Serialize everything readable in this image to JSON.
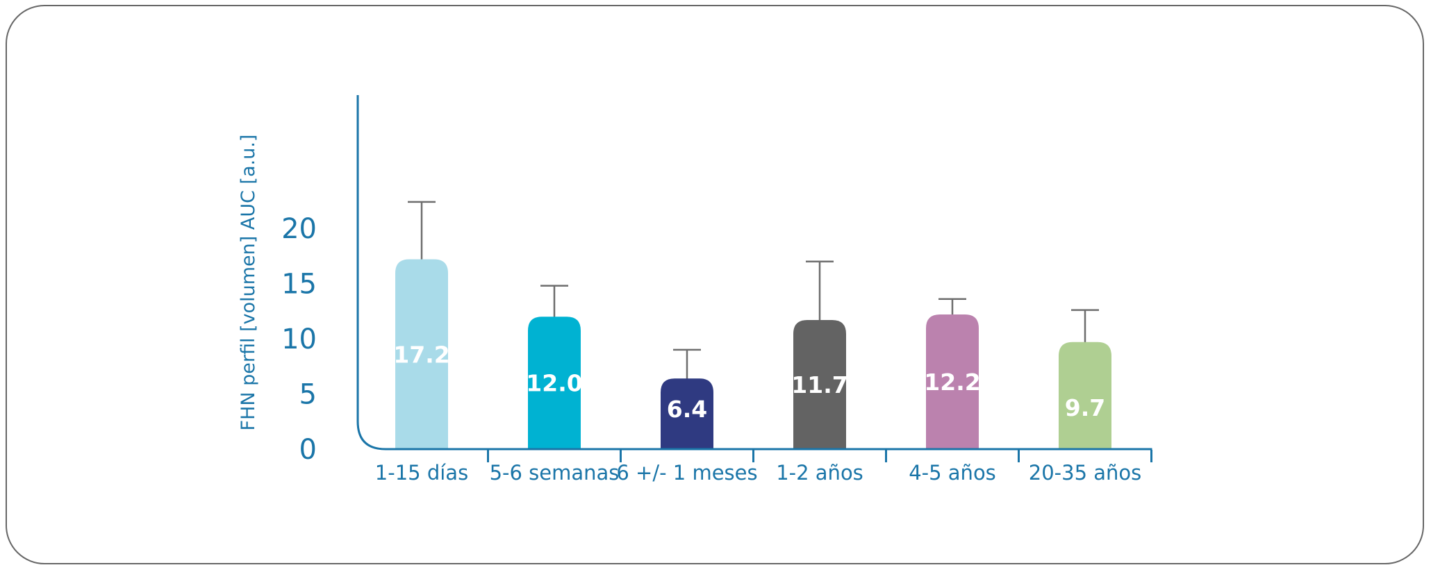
{
  "chart_data": {
    "type": "bar",
    "ylabel": "FHN perfil [volumen] AUC [a.u.]",
    "ylim": [
      0,
      20
    ],
    "yticks": [
      0,
      5,
      10,
      15,
      20
    ],
    "categories": [
      "1-15 días",
      "5-6 semanas",
      "6 +/- 1 meses",
      "1-2 años",
      "4-5 años",
      "20-35 años"
    ],
    "values": [
      17.2,
      12.0,
      6.4,
      11.7,
      12.2,
      9.7
    ],
    "error_upper": [
      22.4,
      14.8,
      9.0,
      17.0,
      13.6,
      12.6
    ],
    "colors": [
      "#a9dbe9",
      "#00b2d2",
      "#2f3a81",
      "#636363",
      "#bb82ae",
      "#afcf92"
    ],
    "axis_color": "#1a75a8",
    "error_bar_color": "#6d6d6d",
    "grid": false,
    "legend": false
  }
}
